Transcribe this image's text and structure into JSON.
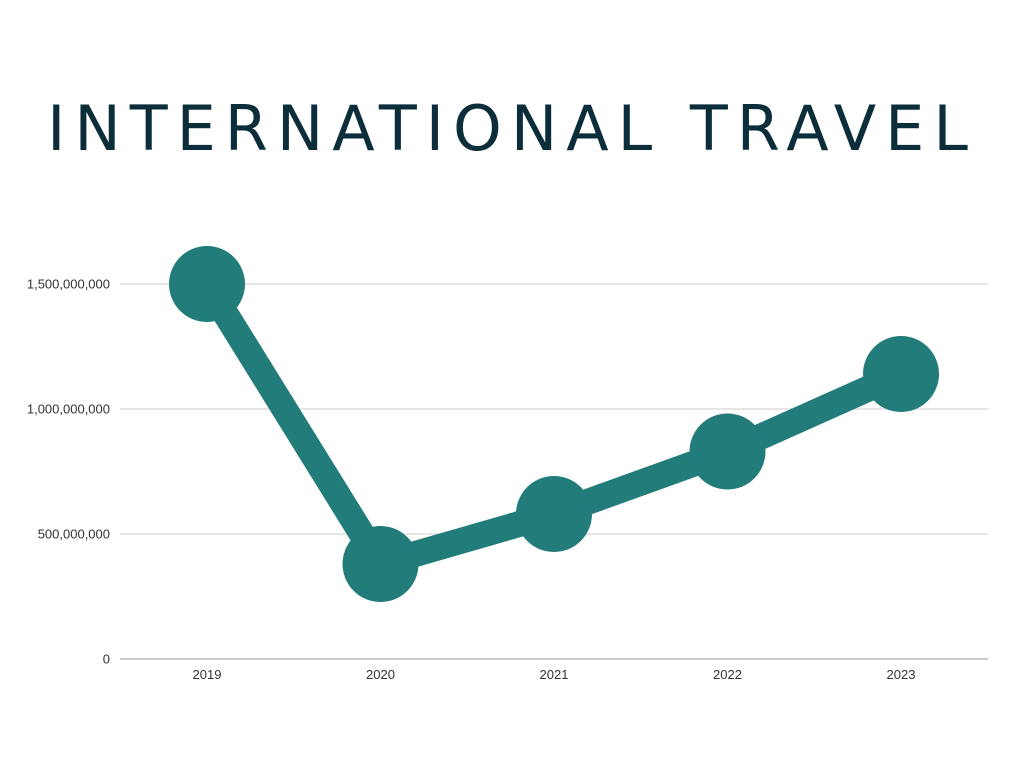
{
  "chart_data": {
    "type": "line",
    "title": "INTERNATIONAL TRAVEL",
    "categories": [
      "2019",
      "2020",
      "2021",
      "2022",
      "2023"
    ],
    "series": [
      {
        "values": [
          1500000000,
          380000000,
          580000000,
          830000000,
          1140000000
        ]
      }
    ],
    "ylim": [
      0,
      1500000000
    ],
    "y_ticks": [
      0,
      500000000,
      1000000000,
      1500000000
    ],
    "y_tick_labels": [
      "0",
      "500,000,000",
      "1,000,000,000",
      "1,500,000,000"
    ],
    "grid": true,
    "colors": {
      "line": "#217c7a",
      "title": "#0c2d3a",
      "grid": "#dddddd",
      "axis": "#bbbbbb"
    }
  }
}
